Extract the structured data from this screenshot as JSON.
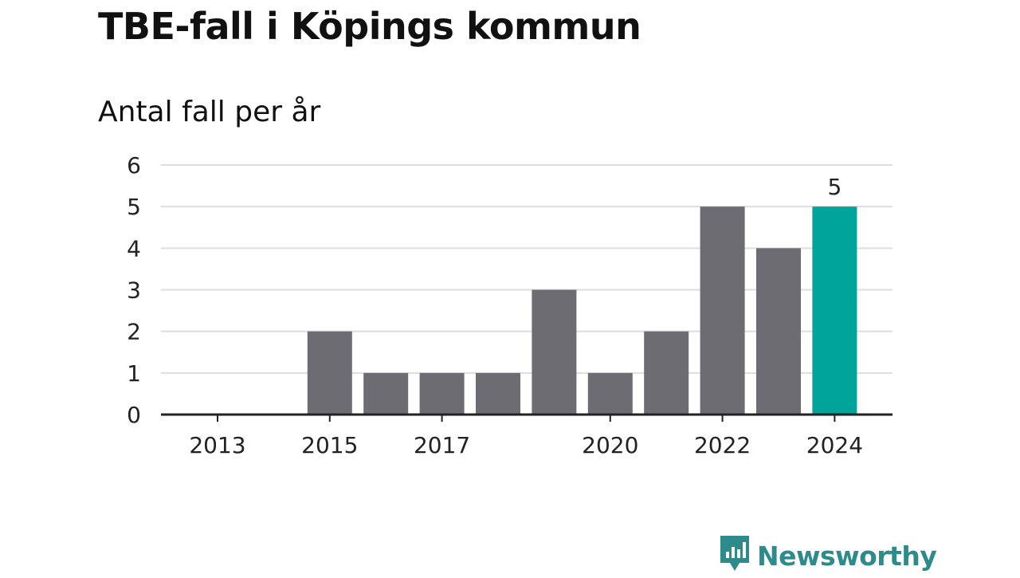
{
  "header": {
    "title": "TBE-fall i Köpings kommun",
    "subtitle": "Antal fall per år"
  },
  "brand": {
    "name": "Newsworthy",
    "color": "#2e8b8b"
  },
  "colors": {
    "bar": "#6d6c72",
    "highlight": "#00a49a",
    "grid": "#dddddd",
    "axis": "#222222"
  },
  "chart_data": {
    "type": "bar",
    "title": "TBE-fall i Köpings kommun",
    "subtitle": "Antal fall per år",
    "xlabel": "",
    "ylabel": "",
    "categories": [
      "2013",
      "2014",
      "2015",
      "2016",
      "2017",
      "2018",
      "2019",
      "2020",
      "2021",
      "2022",
      "2023",
      "2024"
    ],
    "values": [
      0,
      0,
      2,
      1,
      1,
      1,
      3,
      1,
      2,
      5,
      4,
      5
    ],
    "x_tick_labels": [
      "2013",
      "2015",
      "2017",
      "2020",
      "2022",
      "2024"
    ],
    "y_ticks": [
      0,
      1,
      2,
      3,
      4,
      5,
      6
    ],
    "ylim": [
      0,
      6
    ],
    "grid": true,
    "highlight_category": "2024",
    "data_labels": [
      {
        "category": "2024",
        "value": 5
      }
    ]
  }
}
